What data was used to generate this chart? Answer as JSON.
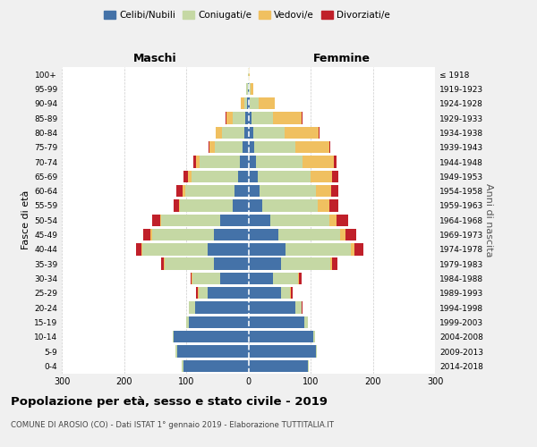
{
  "age_groups": [
    "0-4",
    "5-9",
    "10-14",
    "15-19",
    "20-24",
    "25-29",
    "30-34",
    "35-39",
    "40-44",
    "45-49",
    "50-54",
    "55-59",
    "60-64",
    "65-69",
    "70-74",
    "75-79",
    "80-84",
    "85-89",
    "90-94",
    "95-99",
    "100+"
  ],
  "birth_years": [
    "2014-2018",
    "2009-2013",
    "2004-2008",
    "1999-2003",
    "1994-1998",
    "1989-1993",
    "1984-1988",
    "1979-1983",
    "1974-1978",
    "1969-1973",
    "1964-1968",
    "1959-1963",
    "1954-1958",
    "1949-1953",
    "1944-1948",
    "1939-1943",
    "1934-1938",
    "1929-1933",
    "1924-1928",
    "1919-1923",
    "≤ 1918"
  ],
  "maschi": {
    "celibi": [
      105,
      115,
      120,
      95,
      85,
      65,
      45,
      55,
      65,
      55,
      45,
      25,
      22,
      17,
      14,
      9,
      7,
      5,
      2,
      1,
      0
    ],
    "coniugati": [
      2,
      2,
      2,
      5,
      10,
      15,
      45,
      80,
      105,
      100,
      95,
      85,
      80,
      75,
      65,
      45,
      35,
      20,
      5,
      2,
      1
    ],
    "vedovi": [
      0,
      0,
      0,
      0,
      0,
      2,
      1,
      1,
      2,
      2,
      2,
      2,
      4,
      5,
      5,
      8,
      10,
      10,
      5,
      1,
      0
    ],
    "divorziati": [
      0,
      0,
      0,
      0,
      1,
      2,
      2,
      5,
      8,
      12,
      12,
      8,
      10,
      8,
      5,
      2,
      1,
      1,
      0,
      0,
      0
    ]
  },
  "femmine": {
    "nubili": [
      95,
      108,
      105,
      90,
      75,
      52,
      40,
      52,
      60,
      48,
      35,
      22,
      18,
      15,
      12,
      10,
      8,
      5,
      2,
      1,
      0
    ],
    "coniugate": [
      2,
      2,
      2,
      5,
      10,
      15,
      40,
      80,
      105,
      100,
      95,
      90,
      90,
      85,
      75,
      65,
      50,
      35,
      15,
      2,
      1
    ],
    "vedove": [
      0,
      0,
      0,
      0,
      1,
      2,
      2,
      3,
      5,
      8,
      12,
      18,
      25,
      35,
      50,
      55,
      55,
      45,
      25,
      5,
      1
    ],
    "divorziate": [
      0,
      0,
      0,
      0,
      1,
      2,
      3,
      8,
      15,
      18,
      18,
      15,
      12,
      10,
      5,
      2,
      2,
      2,
      1,
      0,
      0
    ]
  },
  "colors": {
    "celibi": "#4472a8",
    "coniugati": "#c5d8a4",
    "vedovi": "#f0c060",
    "divorziati": "#c0202a"
  },
  "title": "Popolazione per età, sesso e stato civile - 2019",
  "subtitle": "COMUNE DI AROSIO (CO) - Dati ISTAT 1° gennaio 2019 - Elaborazione TUTTITALIA.IT",
  "xlabel_left": "Maschi",
  "xlabel_right": "Femmine",
  "ylabel_left": "Fasce di età",
  "ylabel_right": "Anni di nascita",
  "xlim": 300,
  "bg_color": "#f0f0f0",
  "plot_bg": "#ffffff",
  "grid_color": "#cccccc"
}
